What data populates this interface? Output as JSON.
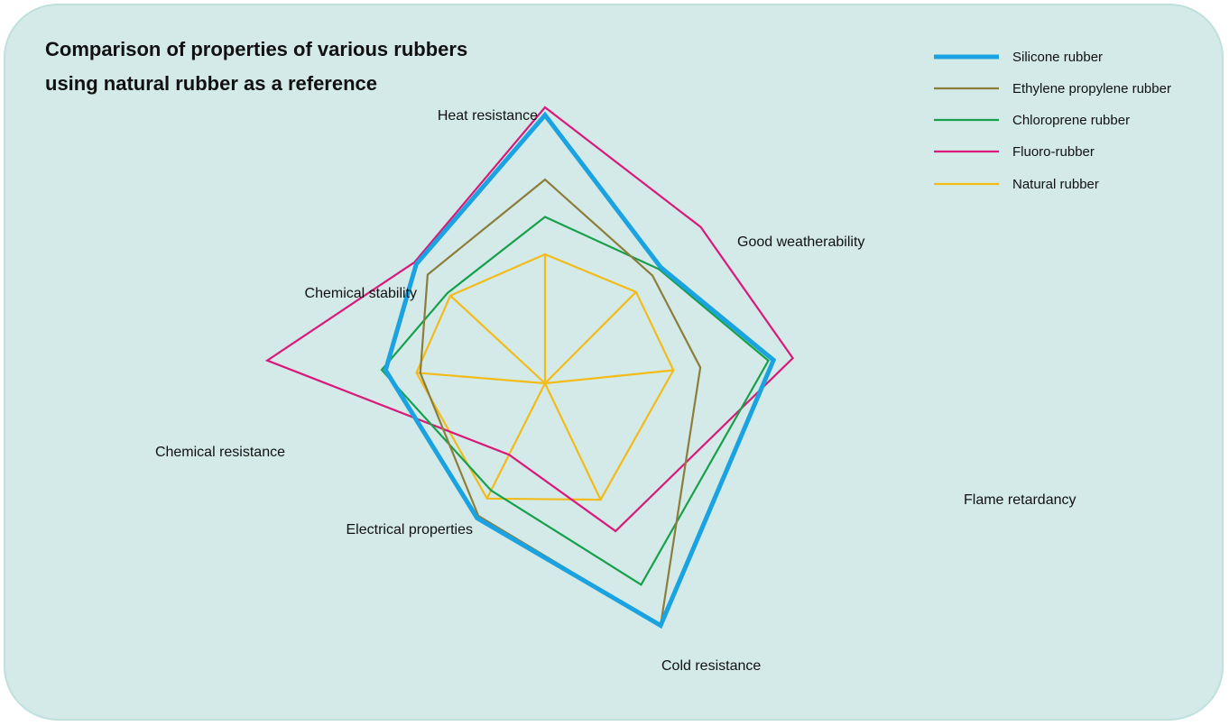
{
  "chart_data": {
    "type": "radar",
    "title_lines": [
      "Comparison of properties of various rubbers",
      "using natural rubber as a reference"
    ],
    "axes": [
      "Heat resistance",
      "Good weatherability",
      "Flame retardancy",
      "Cold resistance",
      "Electrical properties",
      "Chemical resistance",
      "Chemical stability"
    ],
    "range": [
      0,
      2.5
    ],
    "reference_series": "Natural rubber",
    "legend_position": "top-right",
    "series": [
      {
        "name": "Silicone rubber",
        "color": "#1aa3e0",
        "values": [
          2.08,
          1.27,
          1.78,
          2.08,
          1.17,
          1.24,
          1.36
        ]
      },
      {
        "name": "Ethylene propylene rubber",
        "color": "#8c7d3a",
        "values": [
          1.58,
          1.18,
          1.21,
          2.08,
          1.15,
          0.97,
          1.24
        ]
      },
      {
        "name": "Chloroprene rubber",
        "color": "#17a04b",
        "values": [
          1.29,
          1.25,
          1.74,
          1.73,
          0.93,
          1.27,
          1.03
        ]
      },
      {
        "name": "Fluoro-rubber",
        "color": "#d9197a",
        "values": [
          2.14,
          1.71,
          1.93,
          1.27,
          0.62,
          2.16,
          1.38
        ]
      },
      {
        "name": "Natural rubber",
        "color": "#f2bb1a",
        "values": [
          1.0,
          1.0,
          1.0,
          1.0,
          1.0,
          1.0,
          1.0
        ]
      }
    ]
  }
}
